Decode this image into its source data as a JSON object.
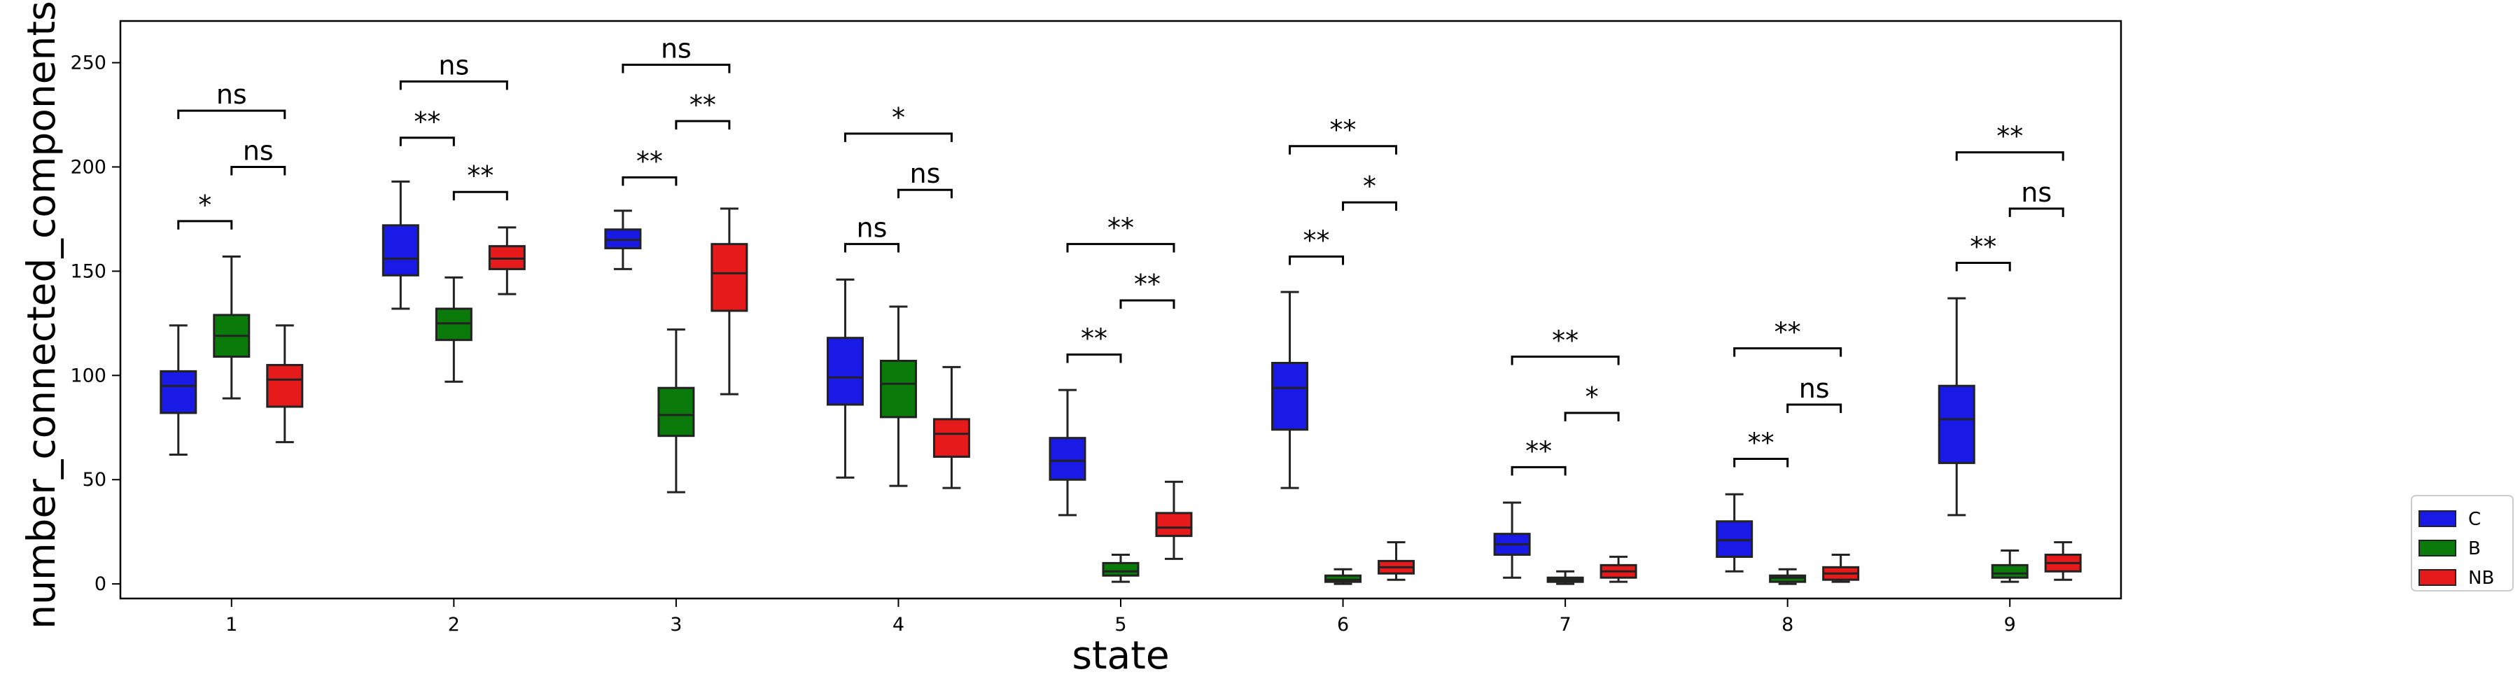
{
  "chart_data": {
    "type": "box",
    "xlabel": "state",
    "ylabel": "number_connected_components",
    "categories": [
      "1",
      "2",
      "3",
      "4",
      "5",
      "6",
      "7",
      "8",
      "9"
    ],
    "yticks": [
      "0",
      "50",
      "100",
      "150",
      "200",
      "250"
    ],
    "ylim": [
      -7,
      270
    ],
    "grid": false,
    "legend": {
      "placement": "outside-right-bottom",
      "entries": [
        "C",
        "B",
        "NB"
      ]
    },
    "series": [
      {
        "name": "C",
        "color": "#1a1ae6",
        "boxes": [
          {
            "whislo": 62,
            "q1": 82,
            "med": 95,
            "q3": 102,
            "whishi": 124
          },
          {
            "whislo": 132,
            "q1": 148,
            "med": 156,
            "q3": 172,
            "whishi": 193
          },
          {
            "whislo": 151,
            "q1": 161,
            "med": 165,
            "q3": 170,
            "whishi": 179
          },
          {
            "whislo": 51,
            "q1": 86,
            "med": 99,
            "q3": 118,
            "whishi": 146
          },
          {
            "whislo": 33,
            "q1": 50,
            "med": 59,
            "q3": 70,
            "whishi": 93
          },
          {
            "whislo": 46,
            "q1": 74,
            "med": 94,
            "q3": 106,
            "whishi": 140
          },
          {
            "whislo": 3,
            "q1": 14,
            "med": 19,
            "q3": 24,
            "whishi": 39
          },
          {
            "whislo": 6,
            "q1": 13,
            "med": 21,
            "q3": 30,
            "whishi": 43
          },
          {
            "whislo": 33,
            "q1": 58,
            "med": 79,
            "q3": 95,
            "whishi": 137
          }
        ]
      },
      {
        "name": "B",
        "color": "#0a7a0a",
        "boxes": [
          {
            "whislo": 89,
            "q1": 109,
            "med": 119,
            "q3": 129,
            "whishi": 157
          },
          {
            "whislo": 97,
            "q1": 117,
            "med": 125,
            "q3": 132,
            "whishi": 147
          },
          {
            "whislo": 44,
            "q1": 71,
            "med": 81,
            "q3": 94,
            "whishi": 122
          },
          {
            "whislo": 47,
            "q1": 80,
            "med": 96,
            "q3": 107,
            "whishi": 133
          },
          {
            "whislo": 1,
            "q1": 4,
            "med": 6,
            "q3": 10,
            "whishi": 14
          },
          {
            "whislo": 0,
            "q1": 1,
            "med": 2,
            "q3": 4,
            "whishi": 7
          },
          {
            "whislo": 0,
            "q1": 1,
            "med": 2,
            "q3": 3,
            "whishi": 6
          },
          {
            "whislo": 0,
            "q1": 1,
            "med": 3,
            "q3": 4,
            "whishi": 7
          },
          {
            "whislo": 1,
            "q1": 3,
            "med": 5,
            "q3": 9,
            "whishi": 16
          }
        ]
      },
      {
        "name": "NB",
        "color": "#e61a1a",
        "boxes": [
          {
            "whislo": 68,
            "q1": 85,
            "med": 98,
            "q3": 105,
            "whishi": 124
          },
          {
            "whislo": 139,
            "q1": 151,
            "med": 156,
            "q3": 162,
            "whishi": 171
          },
          {
            "whislo": 91,
            "q1": 131,
            "med": 149,
            "q3": 163,
            "whishi": 180
          },
          {
            "whislo": 46,
            "q1": 61,
            "med": 72,
            "q3": 79,
            "whishi": 104
          },
          {
            "whislo": 12,
            "q1": 23,
            "med": 27,
            "q3": 34,
            "whishi": 49
          },
          {
            "whislo": 2,
            "q1": 5,
            "med": 8,
            "q3": 11,
            "whishi": 20
          },
          {
            "whislo": 1,
            "q1": 3,
            "med": 6,
            "q3": 9,
            "whishi": 13
          },
          {
            "whislo": 1,
            "q1": 2,
            "med": 5,
            "q3": 8,
            "whishi": 14
          },
          {
            "whislo": 2,
            "q1": 6,
            "med": 10,
            "q3": 14,
            "whishi": 20
          }
        ]
      }
    ],
    "annotations": [
      {
        "state": 1,
        "from": "C",
        "to": "B",
        "y": 174,
        "text": "*"
      },
      {
        "state": 1,
        "from": "B",
        "to": "NB",
        "y": 200,
        "text": "ns"
      },
      {
        "state": 1,
        "from": "C",
        "to": "NB",
        "y": 227,
        "text": "ns"
      },
      {
        "state": 2,
        "from": "C",
        "to": "B",
        "y": 214,
        "text": "**"
      },
      {
        "state": 2,
        "from": "B",
        "to": "NB",
        "y": 188,
        "text": "**"
      },
      {
        "state": 2,
        "from": "C",
        "to": "NB",
        "y": 241,
        "text": "ns"
      },
      {
        "state": 3,
        "from": "C",
        "to": "B",
        "y": 195,
        "text": "**"
      },
      {
        "state": 3,
        "from": "B",
        "to": "NB",
        "y": 222,
        "text": "**"
      },
      {
        "state": 3,
        "from": "C",
        "to": "NB",
        "y": 249,
        "text": "ns"
      },
      {
        "state": 4,
        "from": "C",
        "to": "B",
        "y": 163,
        "text": "ns"
      },
      {
        "state": 4,
        "from": "B",
        "to": "NB",
        "y": 189,
        "text": "ns"
      },
      {
        "state": 4,
        "from": "C",
        "to": "NB",
        "y": 216,
        "text": "*"
      },
      {
        "state": 5,
        "from": "C",
        "to": "B",
        "y": 110,
        "text": "**"
      },
      {
        "state": 5,
        "from": "B",
        "to": "NB",
        "y": 136,
        "text": "**"
      },
      {
        "state": 5,
        "from": "C",
        "to": "NB",
        "y": 163,
        "text": "**"
      },
      {
        "state": 6,
        "from": "C",
        "to": "B",
        "y": 157,
        "text": "**"
      },
      {
        "state": 6,
        "from": "B",
        "to": "NB",
        "y": 183,
        "text": "*"
      },
      {
        "state": 6,
        "from": "C",
        "to": "NB",
        "y": 210,
        "text": "**"
      },
      {
        "state": 7,
        "from": "C",
        "to": "B",
        "y": 56,
        "text": "**"
      },
      {
        "state": 7,
        "from": "B",
        "to": "NB",
        "y": 82,
        "text": "*"
      },
      {
        "state": 7,
        "from": "C",
        "to": "NB",
        "y": 109,
        "text": "**"
      },
      {
        "state": 8,
        "from": "C",
        "to": "B",
        "y": 60,
        "text": "**"
      },
      {
        "state": 8,
        "from": "B",
        "to": "NB",
        "y": 86,
        "text": "ns"
      },
      {
        "state": 8,
        "from": "C",
        "to": "NB",
        "y": 113,
        "text": "**"
      },
      {
        "state": 9,
        "from": "C",
        "to": "B",
        "y": 154,
        "text": "**"
      },
      {
        "state": 9,
        "from": "B",
        "to": "NB",
        "y": 180,
        "text": "ns"
      },
      {
        "state": 9,
        "from": "C",
        "to": "NB",
        "y": 207,
        "text": "**"
      }
    ]
  }
}
